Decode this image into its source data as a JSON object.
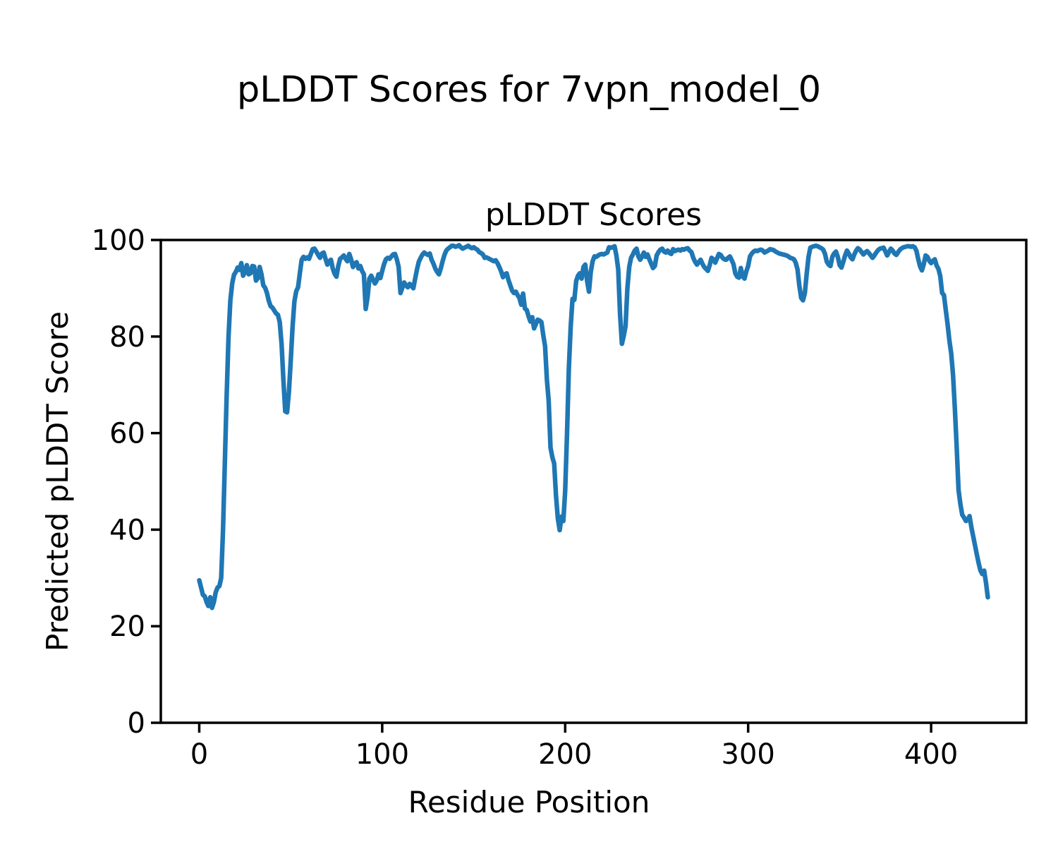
{
  "figure": {
    "suptitle": "pLDDT Scores for 7vpn_model_0"
  },
  "chart_data": {
    "type": "line",
    "title": "pLDDT Scores",
    "xlabel": "Residue Position",
    "ylabel": "Predicted pLDDT Score",
    "xlim": [
      -21,
      452
    ],
    "ylim": [
      0,
      100
    ],
    "x_ticks": [
      0,
      100,
      200,
      300,
      400
    ],
    "y_ticks": [
      0,
      20,
      40,
      60,
      80,
      100
    ],
    "grid": false,
    "legend": null,
    "line_color": "#1f77b4",
    "axis_color": "#000000",
    "background_color": "#ffffff",
    "series": [
      {
        "name": "pLDDT",
        "x_start": 0,
        "x_step": 1,
        "values": [
          29.5,
          28.0,
          26.5,
          26.2,
          25.0,
          24.2,
          26.0,
          23.8,
          25.0,
          27.0,
          28.0,
          28.3,
          30.0,
          40.0,
          54.0,
          68.0,
          80.0,
          87.5,
          91.0,
          92.8,
          93.4,
          94.3,
          93.8,
          95.2,
          92.6,
          93.4,
          94.8,
          92.9,
          93.1,
          94.6,
          94.5,
          91.6,
          92.1,
          94.4,
          92.9,
          90.6,
          90.1,
          89.0,
          87.4,
          86.3,
          86.0,
          85.4,
          84.8,
          84.5,
          83.0,
          78.5,
          71.0,
          64.5,
          64.3,
          68.5,
          75.0,
          82.0,
          87.3,
          89.4,
          90.2,
          93.2,
          95.9,
          96.5,
          96.1,
          96.4,
          96.1,
          97.1,
          98.1,
          98.2,
          97.6,
          96.9,
          96.3,
          97.2,
          97.4,
          96.1,
          94.9,
          95.6,
          95.9,
          94.1,
          93.0,
          92.4,
          94.6,
          96.1,
          96.4,
          96.8,
          96.1,
          95.6,
          97.1,
          96.0,
          94.4,
          95.1,
          95.4,
          94.1,
          94.6,
          93.6,
          92.9,
          85.7,
          88.1,
          92.0,
          92.6,
          91.8,
          91.0,
          91.6,
          92.9,
          92.1,
          93.6,
          95.0,
          96.0,
          96.3,
          96.1,
          96.6,
          97.0,
          97.1,
          96.0,
          94.4,
          89.0,
          90.1,
          91.2,
          90.6,
          90.2,
          90.9,
          90.5,
          90.0,
          92.0,
          93.9,
          95.5,
          96.3,
          97.0,
          97.4,
          97.1,
          96.9,
          97.2,
          95.9,
          95.1,
          94.1,
          93.4,
          92.9,
          94.1,
          95.6,
          96.9,
          97.8,
          98.2,
          98.5,
          98.8,
          98.8,
          98.6,
          98.7,
          98.9,
          98.5,
          98.2,
          98.4,
          98.6,
          98.8,
          98.5,
          98.3,
          98.5,
          98.2,
          98.0,
          97.5,
          97.3,
          97.0,
          96.3,
          96.4,
          96.2,
          96.0,
          95.8,
          95.6,
          95.8,
          95.2,
          94.4,
          93.5,
          92.3,
          92.9,
          93.1,
          91.7,
          90.6,
          89.5,
          89.0,
          89.3,
          88.6,
          88.0,
          86.6,
          88.9,
          85.8,
          85.5,
          84.2,
          83.1,
          84.0,
          81.7,
          82.6,
          83.5,
          83.3,
          83.0,
          80.3,
          78.0,
          71.0,
          66.7,
          57.0,
          55.0,
          53.7,
          47.0,
          42.3,
          39.9,
          42.7,
          41.8,
          48.1,
          59.8,
          73.4,
          82.0,
          87.8,
          87.6,
          91.5,
          92.6,
          93.1,
          92.0,
          94.4,
          94.9,
          91.5,
          89.3,
          93.4,
          95.6,
          96.6,
          96.5,
          96.8,
          97.0,
          97.1,
          97.0,
          97.2,
          97.4,
          98.5,
          98.4,
          98.5,
          98.7,
          96.8,
          93.9,
          84.6,
          78.5,
          80.1,
          82.2,
          90.0,
          94.4,
          96.3,
          97.0,
          97.8,
          98.2,
          96.6,
          95.9,
          96.5,
          97.4,
          96.5,
          97.0,
          96.0,
          95.1,
          94.2,
          94.6,
          96.8,
          97.5,
          98.0,
          98.2,
          97.6,
          97.4,
          97.8,
          97.3,
          97.1,
          98.1,
          97.7,
          97.9,
          98.0,
          97.8,
          98.1,
          98.0,
          98.2,
          98.3,
          97.8,
          97.5,
          96.3,
          95.5,
          94.9,
          95.4,
          95.9,
          95.1,
          94.4,
          94.0,
          93.6,
          94.8,
          96.3,
          96.0,
          95.3,
          96.2,
          97.1,
          96.9,
          96.3,
          96.0,
          95.9,
          96.3,
          96.6,
          95.8,
          95.0,
          93.1,
          92.4,
          92.2,
          94.2,
          92.5,
          92.0,
          93.5,
          94.6,
          96.6,
          97.2,
          97.6,
          97.8,
          97.7,
          97.9,
          98.0,
          97.8,
          97.4,
          97.6,
          97.8,
          98.1,
          98.0,
          97.9,
          97.6,
          97.4,
          97.2,
          97.1,
          97.0,
          96.9,
          96.8,
          96.6,
          96.3,
          96.2,
          96.0,
          95.3,
          93.9,
          90.5,
          88.0,
          87.5,
          89.0,
          93.0,
          96.5,
          98.4,
          98.6,
          98.7,
          98.8,
          98.7,
          98.5,
          98.3,
          98.0,
          97.1,
          95.5,
          94.9,
          94.6,
          96.5,
          97.2,
          97.6,
          96.5,
          94.8,
          94.3,
          95.5,
          96.8,
          97.8,
          97.2,
          96.4,
          96.0,
          97.0,
          97.8,
          98.3,
          98.0,
          97.5,
          97.0,
          97.4,
          97.7,
          97.3,
          96.8,
          96.3,
          96.8,
          97.4,
          97.9,
          98.2,
          98.3,
          98.4,
          97.6,
          96.8,
          97.5,
          98.2,
          97.8,
          97.2,
          96.9,
          97.5,
          98.0,
          98.3,
          98.5,
          98.6,
          98.7,
          98.7,
          98.6,
          98.7,
          98.5,
          97.7,
          96.0,
          94.5,
          93.7,
          95.0,
          96.8,
          96.5,
          95.7,
          95.2,
          95.7,
          96.0,
          94.7,
          94.0,
          92.5,
          89.0,
          88.6,
          85.5,
          82.5,
          79.2,
          76.5,
          72.0,
          65.0,
          57.0,
          48.2,
          45.3,
          43.1,
          42.5,
          41.8,
          42.0,
          42.8,
          40.5,
          38.6,
          36.7,
          34.8,
          33.0,
          31.5,
          30.8,
          31.5,
          29.0,
          26.0
        ]
      }
    ]
  }
}
